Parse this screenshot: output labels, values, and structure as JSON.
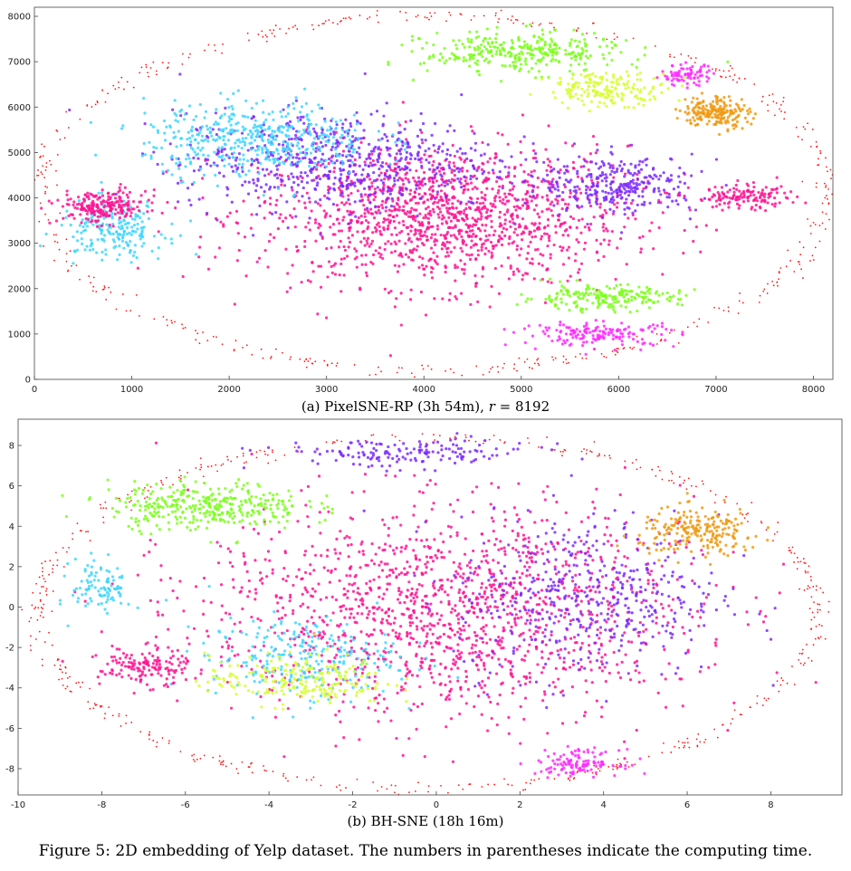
{
  "chart_data": [
    {
      "type": "scatter",
      "title": "",
      "xlabel": "",
      "ylabel": "",
      "xlim": [
        0,
        8200
      ],
      "ylim": [
        0,
        8200
      ],
      "x_ticks": [
        0,
        1000,
        2000,
        3000,
        4000,
        5000,
        6000,
        7000,
        8000
      ],
      "y_ticks": [
        0,
        1000,
        2000,
        3000,
        4000,
        5000,
        6000,
        7000,
        8000
      ],
      "grid": false,
      "caption": "(a) PixelSNE-RP (3h 54m), r = 8192",
      "colors": [
        "#ff1493",
        "#7b2cff",
        "#3fd6ff",
        "#7dff1a",
        "#f09a14",
        "#ff2bff",
        "#ff1a1a",
        "#d6ff2a"
      ],
      "note_visible_structure": "dense magenta core with blue/cyan, green, orange and red outer clusters",
      "clusters": [
        {
          "color": "#ff1493",
          "cx": 4200,
          "cy": 3600,
          "rx": 2100,
          "ry": 1700,
          "n": 1400
        },
        {
          "color": "#7b2cff",
          "cx": 3100,
          "cy": 4800,
          "rx": 1800,
          "ry": 1200,
          "n": 650
        },
        {
          "color": "#3fd6ff",
          "cx": 2300,
          "cy": 5300,
          "rx": 1300,
          "ry": 900,
          "n": 450
        },
        {
          "color": "#3fd6ff",
          "cx": 800,
          "cy": 3300,
          "rx": 600,
          "ry": 700,
          "n": 200
        },
        {
          "color": "#ff1493",
          "cx": 700,
          "cy": 3800,
          "rx": 500,
          "ry": 400,
          "n": 220
        },
        {
          "color": "#7dff1a",
          "cx": 5000,
          "cy": 7200,
          "rx": 1100,
          "ry": 500,
          "n": 320
        },
        {
          "color": "#d6ff2a",
          "cx": 5900,
          "cy": 6400,
          "rx": 700,
          "ry": 400,
          "n": 180
        },
        {
          "color": "#f09a14",
          "cx": 7000,
          "cy": 5900,
          "rx": 380,
          "ry": 380,
          "n": 200
        },
        {
          "color": "#7dff1a",
          "cx": 5800,
          "cy": 1800,
          "rx": 900,
          "ry": 300,
          "n": 200
        },
        {
          "color": "#ff2bff",
          "cx": 5800,
          "cy": 1000,
          "rx": 900,
          "ry": 300,
          "n": 160
        },
        {
          "color": "#7b2cff",
          "cx": 6000,
          "cy": 4300,
          "rx": 900,
          "ry": 700,
          "n": 300
        },
        {
          "color": "#ff2bff",
          "cx": 6700,
          "cy": 6700,
          "rx": 300,
          "ry": 250,
          "n": 80
        },
        {
          "color": "#ff1493",
          "cx": 7300,
          "cy": 4000,
          "rx": 600,
          "ry": 300,
          "n": 140
        }
      ],
      "ring": {
        "color": "#ff1a1a",
        "cx": 4100,
        "cy": 4100,
        "rx": 4050,
        "ry": 3900,
        "n": 480
      }
    },
    {
      "type": "scatter",
      "title": "",
      "xlabel": "",
      "ylabel": "",
      "xlim": [
        -10,
        9.7
      ],
      "ylim": [
        -9.3,
        9.3
      ],
      "x_ticks": [
        -10,
        -8,
        -6,
        -4,
        -2,
        0,
        2,
        4,
        6,
        8
      ],
      "y_ticks": [
        8,
        6,
        4,
        2,
        0,
        -2,
        -4,
        -6,
        -8
      ],
      "grid": false,
      "caption": "(b) BH-SNE (18h 16m)",
      "colors": [
        "#ff1493",
        "#7b2cff",
        "#3fd6ff",
        "#7dff1a",
        "#f09a14",
        "#ff2bff",
        "#ff1a1a",
        "#d6ff2a"
      ],
      "clusters": [
        {
          "color": "#ff1493",
          "cx": 0.2,
          "cy": -0.2,
          "rx": 6.5,
          "ry": 5.8,
          "n": 1500
        },
        {
          "color": "#7b2cff",
          "cx": 3.6,
          "cy": 0.5,
          "rx": 3.5,
          "ry": 4.5,
          "n": 450
        },
        {
          "color": "#3fd6ff",
          "cx": -3.2,
          "cy": -2.5,
          "rx": 2.5,
          "ry": 2.2,
          "n": 250
        },
        {
          "color": "#d6ff2a",
          "cx": -3.3,
          "cy": -3.6,
          "rx": 2.4,
          "ry": 1.4,
          "n": 220
        },
        {
          "color": "#7dff1a",
          "cx": -5.5,
          "cy": 5.0,
          "rx": 2.6,
          "ry": 1.3,
          "n": 350
        },
        {
          "color": "#f09a14",
          "cx": 6.3,
          "cy": 3.7,
          "rx": 1.6,
          "ry": 1.3,
          "n": 220
        },
        {
          "color": "#ff2bff",
          "cx": 3.4,
          "cy": -7.7,
          "rx": 1.1,
          "ry": 0.7,
          "n": 120
        },
        {
          "color": "#7b2cff",
          "cx": -0.8,
          "cy": 7.6,
          "rx": 3.5,
          "ry": 0.8,
          "n": 160
        },
        {
          "color": "#3fd6ff",
          "cx": -8.0,
          "cy": 1.0,
          "rx": 0.8,
          "ry": 1.6,
          "n": 100
        },
        {
          "color": "#ff1493",
          "cx": -7.0,
          "cy": -3.0,
          "rx": 1.2,
          "ry": 1.0,
          "n": 140
        }
      ],
      "ring": {
        "color": "#ff1a1a",
        "cx": -0.2,
        "cy": -0.3,
        "rx": 9.3,
        "ry": 8.7,
        "n": 500
      }
    }
  ],
  "figure_caption": {
    "label": "Figure 5:",
    "text": "2D embedding of Yelp dataset. The numbers in parentheses indicate the computing time."
  },
  "captions": {
    "a_prefix": "(a) PixelSNE-RP (3h 54m), ",
    "a_var": "r",
    "a_suffix": " = 8192",
    "b": "(b) BH-SNE (18h 16m)"
  }
}
